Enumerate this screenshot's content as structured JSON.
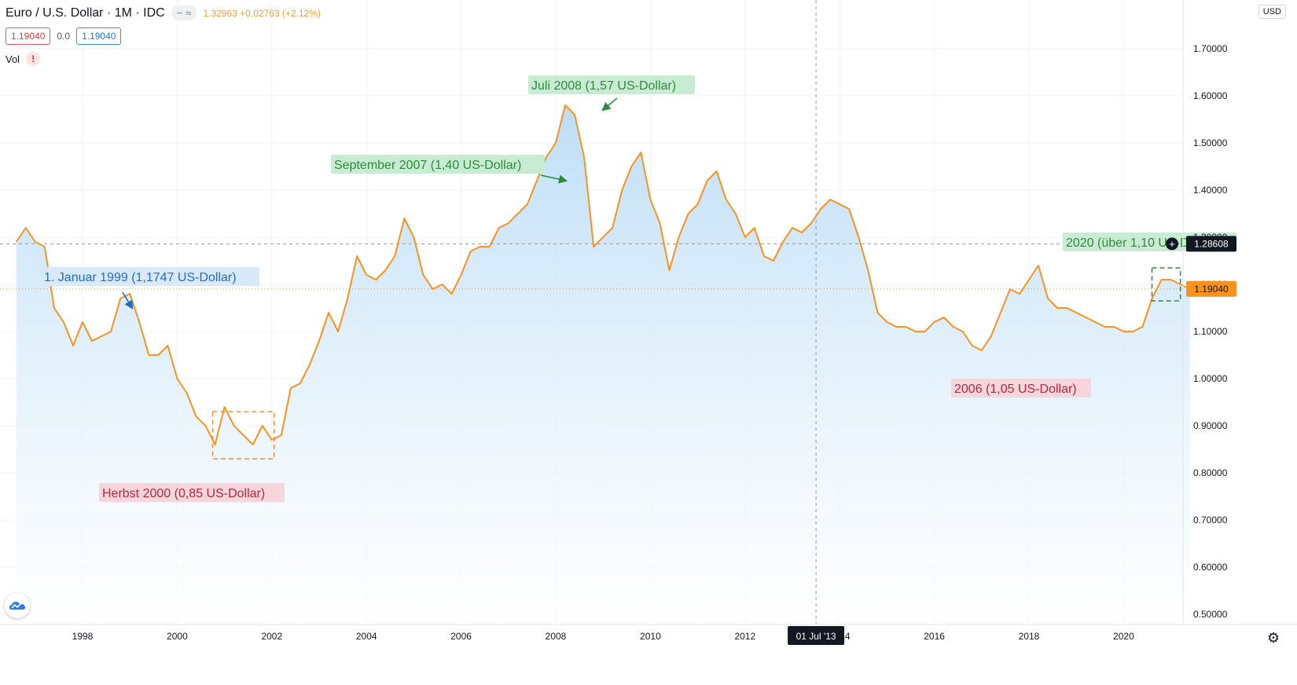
{
  "legend": {
    "title": "Euro / U.S. Dollar · 1M · IDC",
    "eye_icon": "−",
    "wave_icon": "≈",
    "values": "1.32963 +0.02763 (+2.12%)",
    "bid": "1.19040",
    "spread": "0.0",
    "ask": "1.19040",
    "vol_label": "Vol",
    "vol_warning": "!"
  },
  "currency_badge": "USD",
  "crosshair": {
    "price_label": "1.28608",
    "date_label": "01 Jul '13",
    "plus_icon": "+"
  },
  "last_price_label": "1.19040",
  "colors": {
    "line": "#f7931e",
    "fill_top": "#b9dcf6",
    "fill_bottom": "#ffffff",
    "green_annotation": "#2e8b3a",
    "blue_annotation": "#1f6fc4",
    "red_annotation": "#b5283e"
  },
  "chart_data": {
    "type": "area",
    "xlabel": "",
    "ylabel": "",
    "x_ticks": [
      "1998",
      "2000",
      "2002",
      "2004",
      "2006",
      "2008",
      "2010",
      "2012",
      "2014",
      "2016",
      "2018",
      "2020"
    ],
    "y_ticks": [
      "0.50000",
      "0.60000",
      "0.70000",
      "0.80000",
      "0.90000",
      "1.00000",
      "1.10000",
      "1.20000",
      "1.30000",
      "1.40000",
      "1.50000",
      "1.60000",
      "1.70000"
    ],
    "ylim": [
      0.475,
      1.8
    ],
    "xlim": [
      1996.6,
      2021.5
    ],
    "grid": true,
    "series": [
      {
        "x": [
          1996.6,
          1996.8,
          1997.0,
          1997.2,
          1997.4,
          1997.6,
          1997.8,
          1998.0,
          1998.2,
          1998.4,
          1998.6,
          1998.8,
          1999.0,
          1999.2,
          1999.4,
          1999.6,
          1999.8,
          2000.0,
          2000.2,
          2000.4,
          2000.6,
          2000.8,
          2001.0,
          2001.2,
          2001.4,
          2001.6,
          2001.8,
          2002.0,
          2002.2,
          2002.4,
          2002.6,
          2002.8,
          2003.0,
          2003.2,
          2003.4,
          2003.6,
          2003.8,
          2004.0,
          2004.2,
          2004.4,
          2004.6,
          2004.8,
          2005.0,
          2005.2,
          2005.4,
          2005.6,
          2005.8,
          2006.0,
          2006.2,
          2006.4,
          2006.6,
          2006.8,
          2007.0,
          2007.2,
          2007.4,
          2007.6,
          2007.8,
          2008.0,
          2008.2,
          2008.4,
          2008.6,
          2008.8,
          2009.0,
          2009.2,
          2009.4,
          2009.6,
          2009.8,
          2010.0,
          2010.2,
          2010.4,
          2010.6,
          2010.8,
          2011.0,
          2011.2,
          2011.4,
          2011.6,
          2011.8,
          2012.0,
          2012.2,
          2012.4,
          2012.6,
          2012.8,
          2013.0,
          2013.2,
          2013.4,
          2013.6,
          2013.8,
          2014.0,
          2014.2,
          2014.4,
          2014.6,
          2014.8,
          2015.0,
          2015.2,
          2015.4,
          2015.6,
          2015.8,
          2016.0,
          2016.2,
          2016.4,
          2016.6,
          2016.8,
          2017.0,
          2017.2,
          2017.4,
          2017.6,
          2017.8,
          2018.0,
          2018.2,
          2018.4,
          2018.6,
          2018.8,
          2019.0,
          2019.2,
          2019.4,
          2019.6,
          2019.8,
          2020.0,
          2020.2,
          2020.4,
          2020.6,
          2020.8,
          2021.0,
          2021.2,
          2021.4
        ],
        "values": [
          1.29,
          1.32,
          1.29,
          1.28,
          1.15,
          1.12,
          1.07,
          1.12,
          1.08,
          1.09,
          1.1,
          1.17,
          1.18,
          1.12,
          1.05,
          1.05,
          1.07,
          1.0,
          0.97,
          0.92,
          0.9,
          0.86,
          0.94,
          0.9,
          0.88,
          0.86,
          0.9,
          0.87,
          0.88,
          0.98,
          0.99,
          1.03,
          1.08,
          1.14,
          1.1,
          1.17,
          1.26,
          1.22,
          1.21,
          1.23,
          1.26,
          1.34,
          1.3,
          1.22,
          1.19,
          1.2,
          1.18,
          1.22,
          1.27,
          1.28,
          1.28,
          1.32,
          1.33,
          1.35,
          1.37,
          1.42,
          1.47,
          1.5,
          1.58,
          1.56,
          1.47,
          1.28,
          1.3,
          1.32,
          1.4,
          1.45,
          1.48,
          1.38,
          1.33,
          1.23,
          1.3,
          1.35,
          1.37,
          1.42,
          1.44,
          1.38,
          1.35,
          1.3,
          1.32,
          1.26,
          1.25,
          1.29,
          1.32,
          1.31,
          1.33,
          1.36,
          1.38,
          1.37,
          1.36,
          1.3,
          1.23,
          1.14,
          1.12,
          1.11,
          1.11,
          1.1,
          1.1,
          1.12,
          1.13,
          1.11,
          1.1,
          1.07,
          1.06,
          1.09,
          1.14,
          1.19,
          1.18,
          1.21,
          1.24,
          1.17,
          1.15,
          1.15,
          1.14,
          1.13,
          1.12,
          1.11,
          1.11,
          1.1,
          1.1,
          1.11,
          1.17,
          1.21,
          1.21,
          1.2,
          1.19
        ],
        "line_color": "#f7931e"
      }
    ],
    "annotations": [
      {
        "text": "Juli 2008 (1,57 US-Dollar)",
        "x": 2008.5,
        "y": 1.57,
        "style": "green"
      },
      {
        "text": "September 2007 (1,40 US-Dollar)",
        "x": 2007.7,
        "y": 1.4,
        "style": "green"
      },
      {
        "text": "1. Januar 1999 (1,1747 US-Dollar)",
        "x": 1999.0,
        "y": 1.1747,
        "style": "blue"
      },
      {
        "text": "Herbst 2000 (0,85 US-Dollar)",
        "x": 2000.9,
        "y": 0.85,
        "style": "red"
      },
      {
        "text": "2006 (1,05 US-Dollar)",
        "x": 2016.8,
        "y": 1.05,
        "style": "red"
      },
      {
        "text": "2020 (über 1,10 US-Dollar)",
        "x": 2021.0,
        "y": 1.19,
        "style": "green"
      }
    ]
  }
}
